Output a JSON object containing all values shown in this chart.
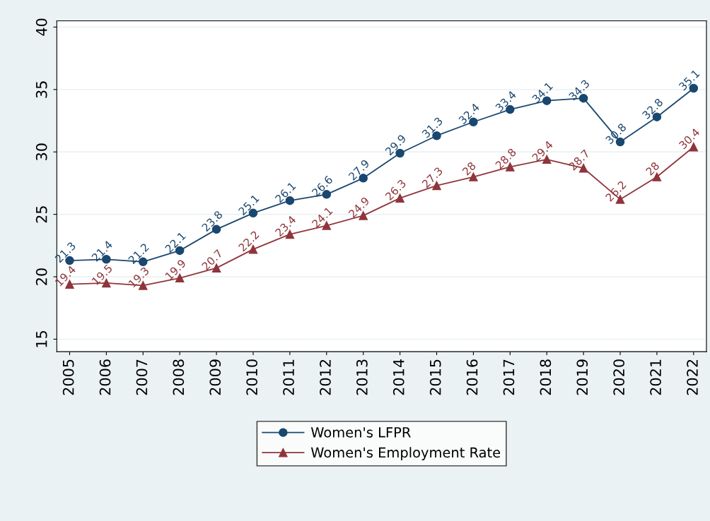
{
  "chart_data": {
    "type": "line",
    "categories": [
      "2005",
      "2006",
      "2007",
      "2008",
      "2009",
      "2010",
      "2011",
      "2012",
      "2013",
      "2014",
      "2015",
      "2016",
      "2017",
      "2018",
      "2019",
      "2020",
      "2021",
      "2022"
    ],
    "series": [
      {
        "name": "Women's LFPR",
        "color": "#1a476f",
        "marker": "circle",
        "values": [
          21.3,
          21.4,
          21.2,
          22.1,
          23.8,
          25.1,
          26.1,
          26.6,
          27.9,
          29.9,
          31.3,
          32.4,
          33.4,
          34.1,
          34.3,
          30.8,
          32.8,
          35.1
        ]
      },
      {
        "name": "Women's Employment Rate",
        "color": "#90353b",
        "marker": "triangle",
        "values": [
          19.4,
          19.5,
          19.3,
          19.9,
          20.7,
          22.2,
          23.4,
          24.1,
          24.9,
          26.3,
          27.3,
          28,
          28.8,
          29.4,
          28.7,
          26.2,
          28,
          30.4
        ]
      }
    ],
    "ylim": [
      14,
      40.5
    ],
    "yticks": [
      15,
      20,
      25,
      30,
      35,
      40
    ],
    "grid": "y",
    "legend": "bottom",
    "data_labels": true
  }
}
